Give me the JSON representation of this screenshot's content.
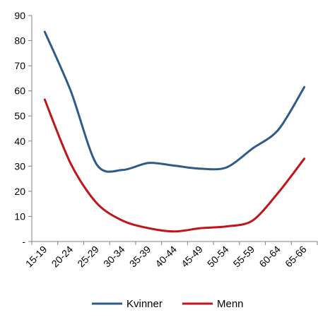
{
  "chart_data": {
    "type": "line",
    "categories": [
      "15-19",
      "20-24",
      "25-29",
      "30-34",
      "35-39",
      "40-44",
      "45-49",
      "50-54",
      "55-59",
      "60-64",
      "65-66"
    ],
    "series": [
      {
        "name": "Kvinner",
        "color": "#2e5c8a",
        "values": [
          83.5,
          60,
          30.7,
          28.5,
          31.3,
          30.2,
          29,
          29.5,
          37,
          44.5,
          61.5
        ]
      },
      {
        "name": "Menn",
        "color": "#c0161b",
        "values": [
          56.5,
          31,
          15.3,
          8.3,
          5.3,
          4,
          5.3,
          6,
          8.3,
          19.5,
          33
        ]
      }
    ],
    "y_ticks": [
      "-",
      "10",
      "20",
      "30",
      "40",
      "50",
      "60",
      "70",
      "80",
      "90"
    ],
    "ylim": [
      0,
      90
    ],
    "grid": false,
    "legend_position": "bottom"
  }
}
